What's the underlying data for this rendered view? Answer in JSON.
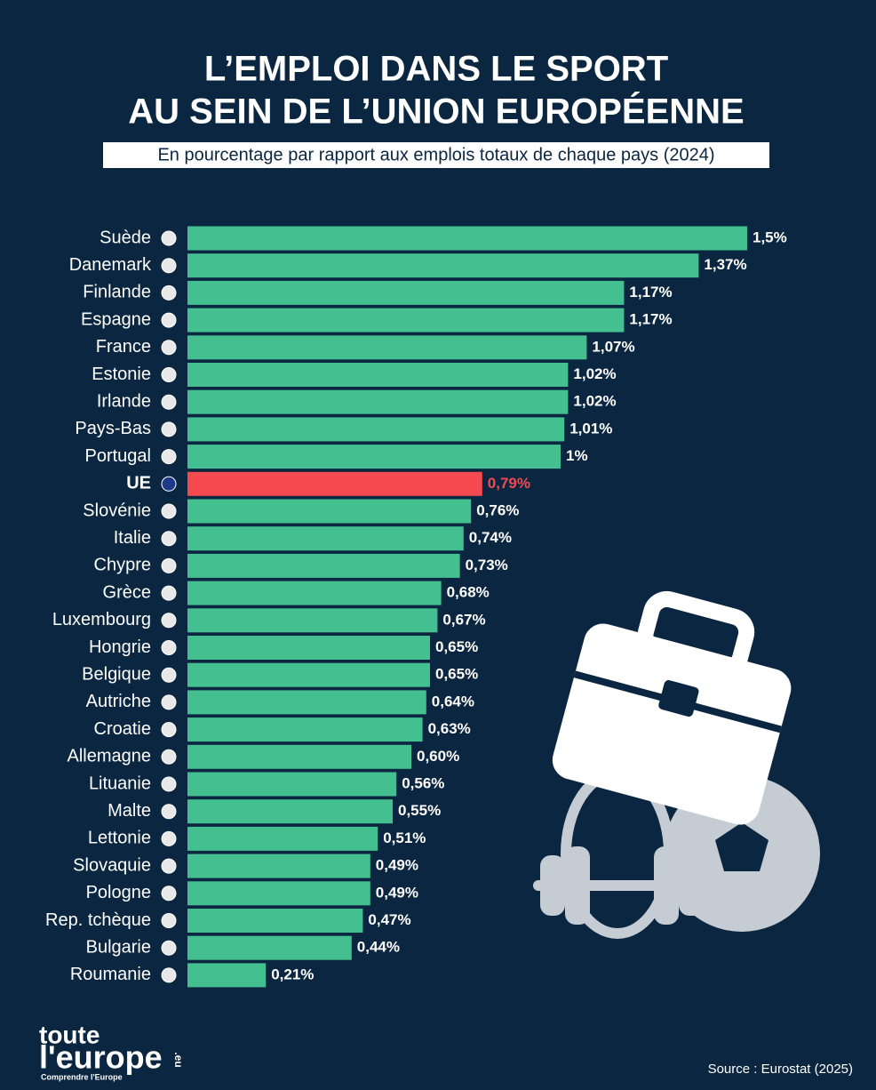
{
  "chart_data": {
    "type": "hbar",
    "title": [
      "L’EMPLOI DANS LE SPORT",
      "AU SEIN DE L’UNION EUROPÉENNE"
    ],
    "subtitle": "En pourcentage par rapport aux emplois totaux de chaque pays (2024)",
    "categories": [
      "Suède",
      "Danemark",
      "Finlande",
      "Espagne",
      "France",
      "Estonie",
      "Irlande",
      "Pays-Bas",
      "Portugal",
      "UE",
      "Slovénie",
      "Italie",
      "Chypre",
      "Grèce",
      "Luxembourg",
      "Hongrie",
      "Belgique",
      "Autriche",
      "Croatie",
      "Allemagne",
      "Lituanie",
      "Malte",
      "Lettonie",
      "Slovaquie",
      "Pologne",
      "Rep. tchèque",
      "Bulgarie",
      "Roumanie"
    ],
    "values": [
      1.5,
      1.37,
      1.17,
      1.17,
      1.07,
      1.02,
      1.02,
      1.01,
      1,
      0.79,
      0.76,
      0.74,
      0.73,
      0.68,
      0.67,
      0.65,
      0.65,
      0.64,
      0.63,
      0.6,
      0.56,
      0.55,
      0.51,
      0.49,
      0.49,
      0.47,
      0.44,
      0.21
    ],
    "value_labels": [
      "1,5%",
      "1,37%",
      "1,17%",
      "1,17%",
      "1,07%",
      "1,02%",
      "1,02%",
      "1,01%",
      "1%",
      "0,79%",
      "0,76%",
      "0,74%",
      "0,73%",
      "0,68%",
      "0,67%",
      "0,65%",
      "0,65%",
      "0,64%",
      "0,63%",
      "0,60%",
      "0,56%",
      "0,55%",
      "0,51%",
      "0,49%",
      "0,49%",
      "0,47%",
      "0,44%",
      "0,21%"
    ],
    "colors": [
      "#44bf8f",
      "#44bf8f",
      "#44bf8f",
      "#44bf8f",
      "#44bf8f",
      "#44bf8f",
      "#44bf8f",
      "#44bf8f",
      "#44bf8f",
      "#f44a4f",
      "#44bf8f",
      "#44bf8f",
      "#44bf8f",
      "#44bf8f",
      "#44bf8f",
      "#44bf8f",
      "#44bf8f",
      "#44bf8f",
      "#44bf8f",
      "#44bf8f",
      "#44bf8f",
      "#44bf8f",
      "#44bf8f",
      "#44bf8f",
      "#44bf8f",
      "#44bf8f",
      "#44bf8f",
      "#44bf8f"
    ],
    "xlim": [
      0,
      1.5
    ],
    "source": "Source : Eurostat (2025)"
  },
  "logo": {
    "line1": "toute",
    "line2": "l'europe",
    "domain": ".eu",
    "tagline": "Comprendre l'Europe"
  }
}
